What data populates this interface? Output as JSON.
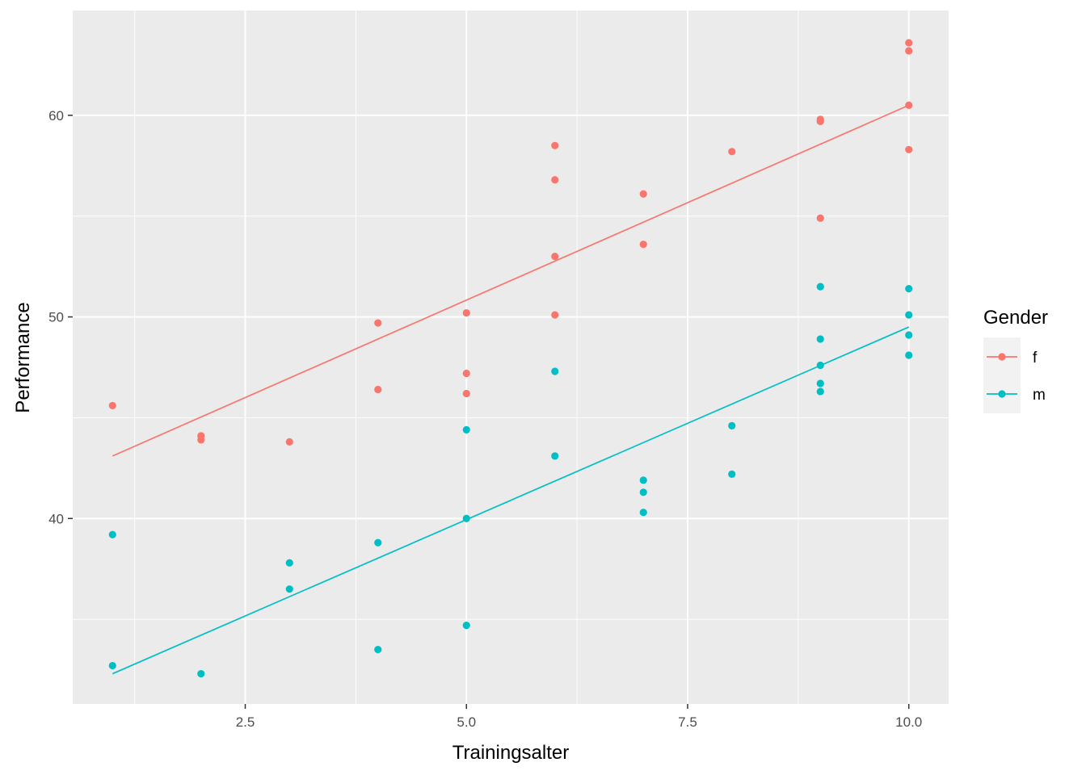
{
  "chart_data": {
    "type": "scatter",
    "title": "",
    "xlabel": "Trainingsalter",
    "ylabel": "Performance",
    "xlim": [
      0.55,
      10.45
    ],
    "ylim": [
      30.8,
      65.2
    ],
    "x_ticks": [
      2.5,
      5.0,
      7.5,
      10.0
    ],
    "x_tick_labels": [
      "2.5",
      "5.0",
      "7.5",
      "10.0"
    ],
    "x_minor_ticks": [
      1.25,
      3.75,
      6.25,
      8.75
    ],
    "y_ticks": [
      40,
      50,
      60
    ],
    "y_tick_labels": [
      "40",
      "50",
      "60"
    ],
    "y_minor_ticks": [
      35,
      45,
      55
    ],
    "grid": true,
    "legend": {
      "title": "Gender",
      "position": "right"
    },
    "series": [
      {
        "name": "f",
        "color": "#F8766D",
        "points": [
          [
            1,
            45.6
          ],
          [
            2,
            44.1
          ],
          [
            2,
            43.9
          ],
          [
            3,
            43.8
          ],
          [
            4,
            49.7
          ],
          [
            4,
            46.4
          ],
          [
            5,
            50.2
          ],
          [
            5,
            47.2
          ],
          [
            5,
            46.2
          ],
          [
            6,
            58.5
          ],
          [
            6,
            56.8
          ],
          [
            6,
            53.0
          ],
          [
            6,
            50.1
          ],
          [
            7,
            56.1
          ],
          [
            7,
            53.6
          ],
          [
            8,
            58.2
          ],
          [
            9,
            59.8
          ],
          [
            9,
            59.7
          ],
          [
            9,
            54.9
          ],
          [
            10,
            63.6
          ],
          [
            10,
            63.2
          ],
          [
            10,
            60.5
          ],
          [
            10,
            58.3
          ]
        ],
        "fit_line": [
          [
            1,
            43.1
          ],
          [
            10,
            60.5
          ]
        ]
      },
      {
        "name": "m",
        "color": "#00BFC4",
        "points": [
          [
            1,
            39.2
          ],
          [
            1,
            32.7
          ],
          [
            2,
            32.3
          ],
          [
            3,
            37.8
          ],
          [
            3,
            36.5
          ],
          [
            4,
            38.8
          ],
          [
            4,
            33.5
          ],
          [
            5,
            44.4
          ],
          [
            5,
            40.0
          ],
          [
            5,
            34.7
          ],
          [
            6,
            47.3
          ],
          [
            6,
            43.1
          ],
          [
            7,
            41.9
          ],
          [
            7,
            41.3
          ],
          [
            7,
            40.3
          ],
          [
            8,
            44.6
          ],
          [
            8,
            42.2
          ],
          [
            9,
            51.5
          ],
          [
            9,
            48.9
          ],
          [
            9,
            47.6
          ],
          [
            9,
            46.7
          ],
          [
            9,
            46.3
          ],
          [
            10,
            51.4
          ],
          [
            10,
            50.1
          ],
          [
            10,
            49.1
          ],
          [
            10,
            48.1
          ]
        ],
        "fit_line": [
          [
            1,
            32.3
          ],
          [
            10,
            49.5
          ]
        ]
      }
    ]
  }
}
